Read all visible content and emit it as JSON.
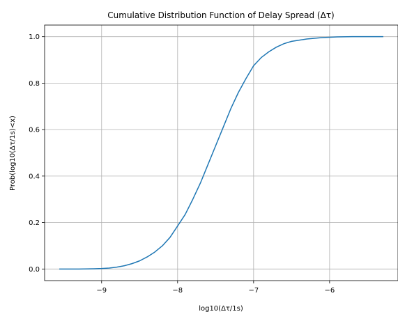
{
  "chart_data": {
    "type": "line",
    "title": "Cumulative Distribution Function of Delay Spread (Δτ)",
    "xlabel": "log10(Δτ/1s)",
    "ylabel": "Prob(log10(Δτ/1s)<x)",
    "xlim": [
      -9.75,
      -5.1
    ],
    "ylim": [
      -0.05,
      1.05
    ],
    "grid": true,
    "x_ticks": [
      -9,
      -8,
      -7,
      -6
    ],
    "x_tick_labels": [
      "−9",
      "−8",
      "−7",
      "−6"
    ],
    "y_ticks": [
      0.0,
      0.2,
      0.4,
      0.6,
      0.8,
      1.0
    ],
    "y_tick_labels": [
      "0.0",
      "0.2",
      "0.4",
      "0.6",
      "0.8",
      "1.0"
    ],
    "series": [
      {
        "color": "#1f77b4",
        "x": [
          -9.55,
          -9.3,
          -9.1,
          -9.0,
          -8.9,
          -8.8,
          -8.7,
          -8.6,
          -8.5,
          -8.4,
          -8.3,
          -8.2,
          -8.1,
          -8.0,
          -7.9,
          -7.8,
          -7.7,
          -7.6,
          -7.5,
          -7.4,
          -7.3,
          -7.2,
          -7.1,
          -7.0,
          -6.9,
          -6.8,
          -6.7,
          -6.6,
          -6.5,
          -6.3,
          -6.1,
          -5.9,
          -5.7,
          -5.5,
          -5.3
        ],
        "y": [
          0.0,
          0.0,
          0.001,
          0.002,
          0.004,
          0.008,
          0.014,
          0.023,
          0.035,
          0.052,
          0.073,
          0.1,
          0.136,
          0.185,
          0.235,
          0.3,
          0.37,
          0.45,
          0.53,
          0.61,
          0.69,
          0.76,
          0.82,
          0.875,
          0.91,
          0.935,
          0.955,
          0.97,
          0.98,
          0.99,
          0.996,
          0.999,
          1.0,
          1.0,
          1.0
        ]
      }
    ]
  }
}
